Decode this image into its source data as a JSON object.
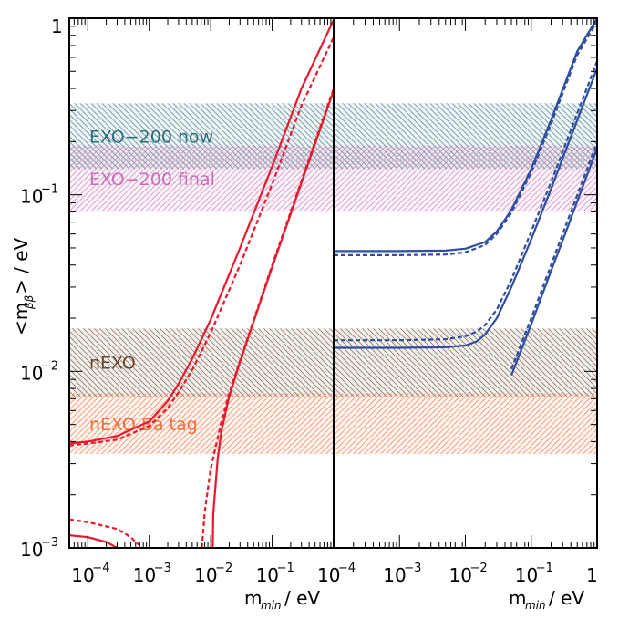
{
  "chart_data": {
    "type": "line",
    "ylabel": "<m_ββ> / eV",
    "y_scale": "log",
    "ylim": [
      0.001,
      1
    ],
    "y_tick_labels": [
      {
        "value": 1,
        "base": "1",
        "exp": ""
      },
      {
        "value": 0.1,
        "base": "10",
        "exp": "−1"
      },
      {
        "value": 0.01,
        "base": "10",
        "exp": "−2"
      },
      {
        "value": 0.001,
        "base": "10",
        "exp": "−3"
      }
    ],
    "bands": [
      {
        "name": "EXO-200 now",
        "label": "EXO−200 now",
        "ymin": 0.14,
        "ymax": 0.33,
        "color": "#2e6f7e",
        "hatch": "backslash"
      },
      {
        "name": "EXO-200 final",
        "label": "EXO−200 final",
        "ymin": 0.08,
        "ymax": 0.19,
        "color": "#c86fb8",
        "hatch": "slash"
      },
      {
        "name": "nEXO",
        "label": "nEXO",
        "ymin": 0.0072,
        "ymax": 0.0175,
        "color": "#6b4a2e",
        "hatch": "backslash"
      },
      {
        "name": "nEXO Ba tag",
        "label": "nEXO Ba tag",
        "ymin": 0.0034,
        "ymax": 0.0075,
        "color": "#f0703c",
        "hatch": "slash"
      }
    ],
    "panels": [
      {
        "id": "left",
        "xlabel": "m_min / eV",
        "x_scale": "log",
        "xlim": [
          5e-05,
          1
        ],
        "x_tick_labels": [
          {
            "value": 0.0001,
            "base": "10",
            "exp": "−4"
          },
          {
            "value": 0.001,
            "base": "10",
            "exp": "−3"
          },
          {
            "value": 0.01,
            "base": "10",
            "exp": "−2"
          },
          {
            "value": 0.1,
            "base": "10",
            "exp": "−1"
          }
        ],
        "color": "#e8192c",
        "curves": [
          {
            "style": "solid",
            "x": [
              5e-05,
              0.0001,
              0.0003,
              0.001,
              0.002,
              0.003,
              0.005,
              0.01,
              0.03,
              0.1,
              0.3,
              1
            ],
            "y": [
              0.0039,
              0.004,
              0.0043,
              0.0052,
              0.0068,
              0.0085,
              0.0118,
              0.0196,
              0.05,
              0.145,
              0.4,
              0.98
            ]
          },
          {
            "style": "dashed",
            "x": [
              5e-05,
              0.0001,
              0.0003,
              0.001,
              0.002,
              0.003,
              0.005,
              0.01,
              0.03,
              0.1,
              0.3,
              1
            ],
            "y": [
              0.0038,
              0.0039,
              0.0041,
              0.0049,
              0.0062,
              0.0076,
              0.0102,
              0.0165,
              0.04,
              0.115,
              0.32,
              0.78
            ]
          },
          {
            "style": "dashed",
            "x": [
              5e-05,
              0.0001,
              0.0003,
              0.0005,
              0.0007,
              0.0008
            ],
            "y": [
              0.00145,
              0.0014,
              0.00128,
              0.00115,
              0.00103,
              0.001
            ]
          },
          {
            "style": "dashed",
            "x": [
              0.0072,
              0.008,
              0.01,
              0.015,
              0.02,
              0.03,
              0.05,
              0.1,
              0.3,
              1
            ],
            "y": [
              0.001,
              0.0016,
              0.0028,
              0.0052,
              0.0075,
              0.0115,
              0.0195,
              0.04,
              0.12,
              0.4
            ]
          },
          {
            "style": "solid",
            "x": [
              5e-05,
              0.0001,
              0.0002,
              0.0003,
              0.0004,
              0.00045
            ],
            "y": [
              0.00118,
              0.00115,
              0.00108,
              0.001,
              0.00092,
              0.00088
            ]
          },
          {
            "style": "solid",
            "x": [
              0.0108,
              0.011,
              0.013,
              0.015,
              0.02,
              0.03,
              0.05,
              0.1,
              0.3,
              1
            ],
            "y": [
              0.001,
              0.00155,
              0.0032,
              0.0046,
              0.0072,
              0.0113,
              0.0192,
              0.039,
              0.117,
              0.39
            ]
          }
        ]
      },
      {
        "id": "right",
        "xlabel": "m_min / eV",
        "x_scale": "log",
        "xlim": [
          0.0001,
          1
        ],
        "x_tick_labels": [
          {
            "value": 0.0001,
            "base": "10",
            "exp": "−4"
          },
          {
            "value": 0.001,
            "base": "10",
            "exp": "−3"
          },
          {
            "value": 0.01,
            "base": "10",
            "exp": "−2"
          },
          {
            "value": 0.1,
            "base": "10",
            "exp": "−1"
          },
          {
            "value": 1,
            "base": "1",
            "exp": ""
          }
        ],
        "color": "#2f4e9e",
        "curves": [
          {
            "style": "solid",
            "x": [
              0.0001,
              0.001,
              0.005,
              0.01,
              0.02,
              0.03,
              0.05,
              0.1,
              0.2,
              0.5,
              1
            ],
            "y": [
              0.048,
              0.048,
              0.0483,
              0.0495,
              0.054,
              0.062,
              0.082,
              0.14,
              0.265,
              0.65,
              1.0
            ]
          },
          {
            "style": "dashed",
            "x": [
              0.0001,
              0.001,
              0.005,
              0.01,
              0.02,
              0.03,
              0.05,
              0.1,
              0.2,
              0.5,
              1
            ],
            "y": [
              0.0455,
              0.0455,
              0.0459,
              0.0472,
              0.052,
              0.06,
              0.079,
              0.134,
              0.252,
              0.62,
              0.96
            ]
          },
          {
            "style": "solid",
            "x": [
              0.0001,
              0.001,
              0.005,
              0.01,
              0.015,
              0.02,
              0.03,
              0.05,
              0.1,
              0.2,
              0.5,
              1
            ],
            "y": [
              0.0136,
              0.0136,
              0.0137,
              0.014,
              0.0148,
              0.0162,
              0.02,
              0.03,
              0.056,
              0.108,
              0.265,
              0.52
            ]
          },
          {
            "style": "dashed",
            "x": [
              0.0001,
              0.001,
              0.005,
              0.01,
              0.015,
              0.02,
              0.03,
              0.05,
              0.1,
              0.2,
              0.5,
              1
            ],
            "y": [
              0.015,
              0.015,
              0.0152,
              0.0158,
              0.0168,
              0.0183,
              0.0224,
              0.033,
              0.062,
              0.118,
              0.29,
              0.57
            ]
          },
          {
            "style": "solid",
            "x": [
              0.05,
              0.1,
              0.2,
              0.3,
              0.5,
              1
            ],
            "y": [
              0.0095,
              0.0185,
              0.037,
              0.055,
              0.092,
              0.183
            ]
          },
          {
            "style": "dashed",
            "x": [
              0.05,
              0.1,
              0.2,
              0.3,
              0.5,
              1
            ],
            "y": [
              0.0103,
              0.02,
              0.04,
              0.06,
              0.1,
              0.198
            ]
          }
        ]
      }
    ]
  }
}
